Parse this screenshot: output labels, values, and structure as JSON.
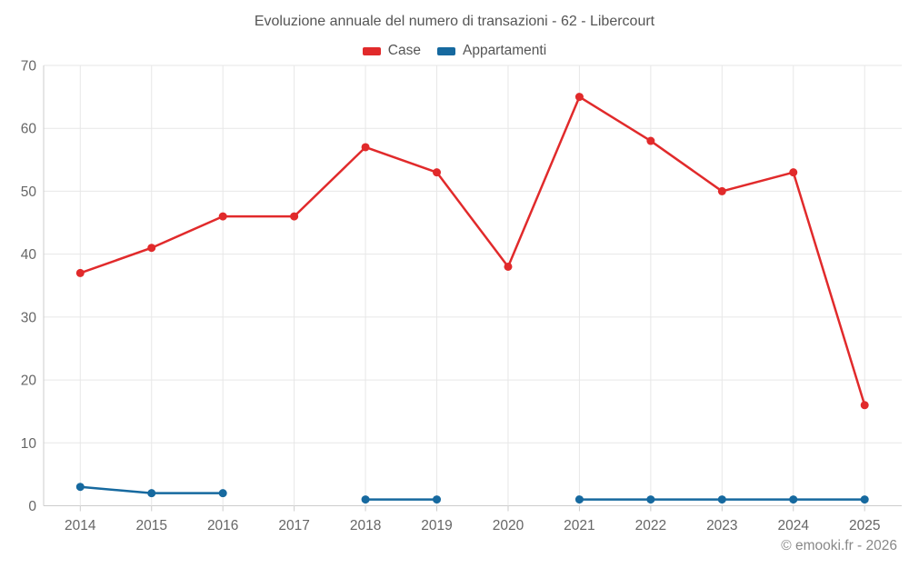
{
  "page": {
    "copyright": "© emooki.fr - 2026"
  },
  "chart_data": {
    "type": "line",
    "title": "Evoluzione annuale del numero di transazioni - 62 - Libercourt",
    "x": [
      2014,
      2015,
      2016,
      2017,
      2018,
      2019,
      2020,
      2021,
      2022,
      2023,
      2024,
      2025
    ],
    "series": [
      {
        "name": "Case",
        "color": "#e12a2b",
        "values": [
          37,
          41,
          46,
          46,
          57,
          53,
          38,
          65,
          58,
          50,
          53,
          16
        ]
      },
      {
        "name": "Appartamenti",
        "color": "#16699f",
        "values": [
          3,
          2,
          2,
          null,
          1,
          1,
          null,
          1,
          1,
          1,
          1,
          1
        ]
      }
    ],
    "ylim": [
      0,
      70
    ],
    "ytick_step": 10,
    "grid": true,
    "legend_position": "top",
    "xlabel": "",
    "ylabel": ""
  },
  "theme": {
    "background": "#ffffff",
    "grid_color": "#e7e7e7",
    "axis_color": "#cccccc",
    "tick_text_color": "#666666",
    "title_color": "#555555",
    "legend_text_color": "#555555",
    "copyright_color": "#888888"
  }
}
